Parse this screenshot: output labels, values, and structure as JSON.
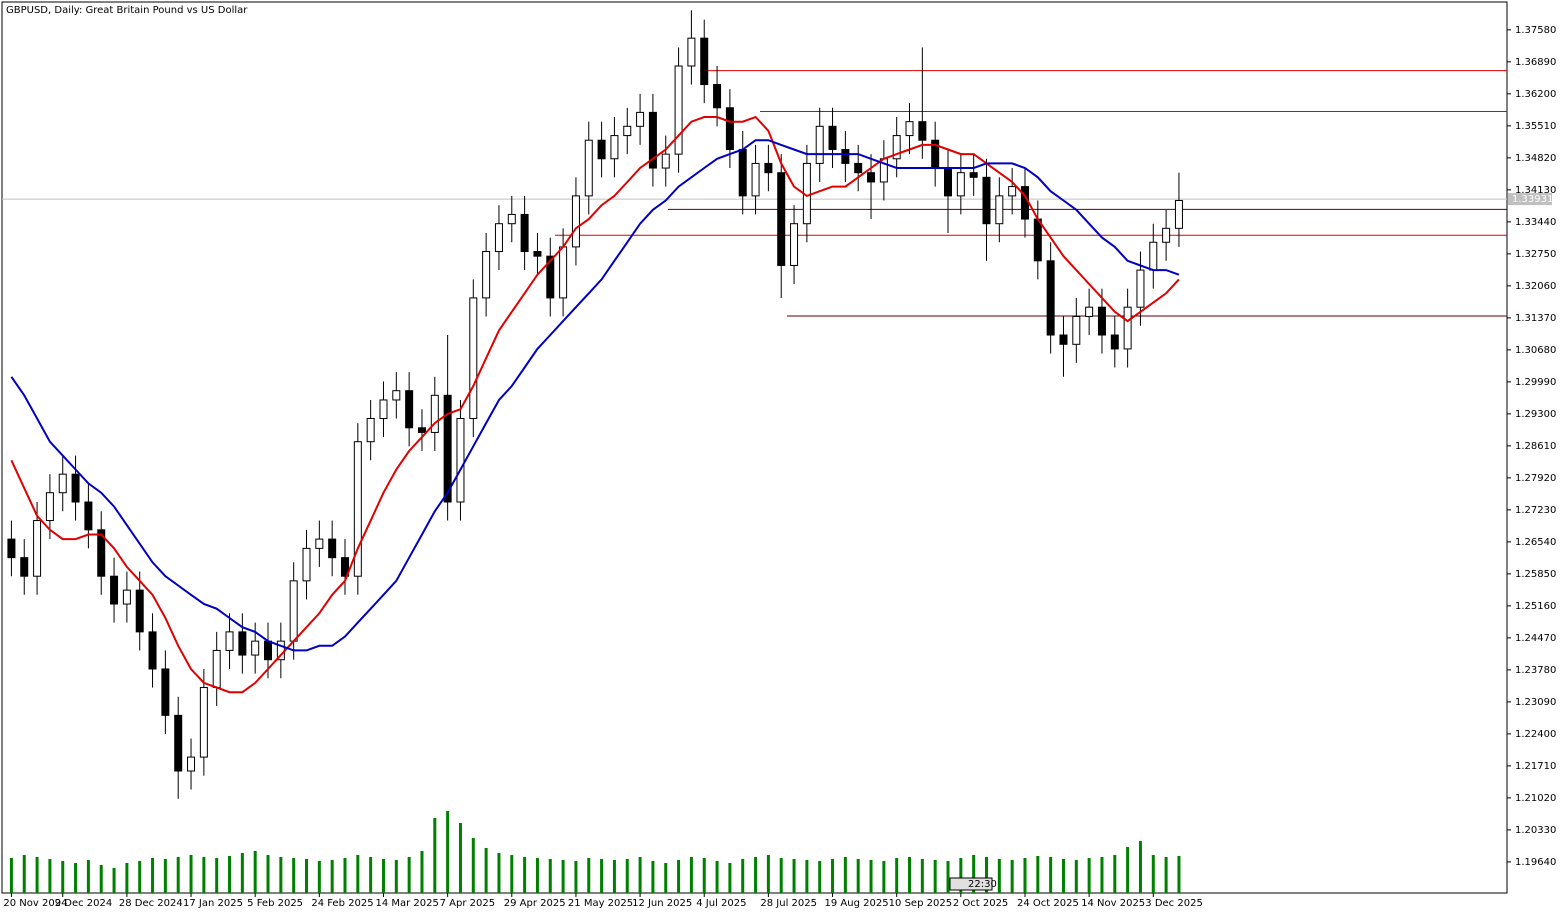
{
  "chart_data": {
    "type": "candlestick",
    "title": "GBPUSD, Daily:  Great Britain Pound vs US Dollar",
    "time_marker": "22:30",
    "categories": [
      "20 Nov 2024",
      null,
      null,
      null,
      "9 Dec 2024",
      null,
      null,
      null,
      null,
      "28 Dec 2024",
      null,
      null,
      null,
      null,
      "17 Jan 2025",
      null,
      null,
      null,
      null,
      "5 Feb 2025",
      null,
      null,
      null,
      null,
      "24 Feb 2025",
      null,
      null,
      null,
      null,
      "14 Mar 2025",
      null,
      null,
      null,
      null,
      "7 Apr 2025",
      null,
      null,
      null,
      null,
      "29 Apr 2025",
      null,
      null,
      null,
      null,
      "21 May 2025",
      null,
      null,
      null,
      null,
      "12 Jun 2025",
      null,
      null,
      null,
      null,
      "4 Jul 2025",
      null,
      null,
      null,
      null,
      "28 Jul 2025",
      null,
      null,
      null,
      null,
      "19 Aug 2025",
      null,
      null,
      null,
      null,
      "10 Sep 2025",
      null,
      null,
      null,
      null,
      "2 Oct 2025",
      null,
      null,
      null,
      null,
      "24 Oct 2025",
      null,
      null,
      null,
      null,
      "14 Nov 2025",
      null,
      null,
      null,
      null,
      "3 Dec 2025",
      null,
      null
    ],
    "open": [
      1.266,
      1.262,
      1.258,
      1.27,
      1.276,
      1.28,
      1.274,
      1.268,
      1.258,
      1.252,
      1.255,
      1.246,
      1.238,
      1.228,
      1.216,
      1.219,
      1.234,
      1.242,
      1.246,
      1.241,
      1.244,
      1.24,
      1.244,
      1.257,
      1.264,
      1.266,
      1.262,
      1.258,
      1.287,
      1.292,
      1.296,
      1.298,
      1.29,
      1.289,
      1.297,
      1.274,
      1.292,
      1.318,
      1.328,
      1.334,
      1.336,
      1.328,
      1.327,
      1.318,
      1.329,
      1.34,
      1.352,
      1.348,
      1.353,
      1.355,
      1.358,
      1.346,
      1.349,
      1.368,
      1.374,
      1.364,
      1.359,
      1.35,
      1.34,
      1.347,
      1.345,
      1.325,
      1.334,
      1.347,
      1.355,
      1.35,
      1.347,
      1.345,
      1.343,
      1.348,
      1.353,
      1.356,
      1.352,
      1.346,
      1.34,
      1.345,
      1.344,
      1.334,
      1.34,
      1.342,
      1.335,
      1.326,
      1.31,
      1.308,
      1.314,
      1.316,
      1.31,
      1.307,
      1.316,
      1.324,
      1.33,
      1.333
    ],
    "high": [
      1.27,
      1.266,
      1.274,
      1.28,
      1.284,
      1.284,
      1.278,
      1.272,
      1.262,
      1.259,
      1.259,
      1.25,
      1.242,
      1.232,
      1.223,
      1.238,
      1.246,
      1.25,
      1.25,
      1.248,
      1.248,
      1.248,
      1.261,
      1.268,
      1.27,
      1.27,
      1.266,
      1.291,
      1.296,
      1.3,
      1.302,
      1.302,
      1.294,
      1.301,
      1.31,
      1.296,
      1.322,
      1.332,
      1.338,
      1.34,
      1.34,
      1.332,
      1.331,
      1.333,
      1.344,
      1.356,
      1.356,
      1.357,
      1.359,
      1.362,
      1.362,
      1.353,
      1.372,
      1.38,
      1.378,
      1.368,
      1.363,
      1.354,
      1.351,
      1.351,
      1.349,
      1.338,
      1.351,
      1.359,
      1.359,
      1.354,
      1.351,
      1.349,
      1.352,
      1.357,
      1.36,
      1.372,
      1.356,
      1.35,
      1.349,
      1.349,
      1.348,
      1.344,
      1.346,
      1.346,
      1.339,
      1.33,
      1.314,
      1.318,
      1.32,
      1.32,
      1.314,
      1.32,
      1.328,
      1.334,
      1.337,
      1.345
    ],
    "low": [
      1.258,
      1.254,
      1.254,
      1.266,
      1.272,
      1.27,
      1.264,
      1.254,
      1.248,
      1.248,
      1.242,
      1.234,
      1.224,
      1.21,
      1.212,
      1.215,
      1.23,
      1.238,
      1.237,
      1.237,
      1.236,
      1.236,
      1.24,
      1.253,
      1.26,
      1.258,
      1.254,
      1.254,
      1.283,
      1.288,
      1.292,
      1.286,
      1.285,
      1.285,
      1.27,
      1.27,
      1.288,
      1.314,
      1.324,
      1.33,
      1.324,
      1.323,
      1.314,
      1.314,
      1.325,
      1.336,
      1.344,
      1.344,
      1.349,
      1.351,
      1.342,
      1.342,
      1.345,
      1.364,
      1.36,
      1.355,
      1.346,
      1.336,
      1.336,
      1.341,
      1.318,
      1.321,
      1.33,
      1.343,
      1.346,
      1.343,
      1.341,
      1.335,
      1.339,
      1.344,
      1.349,
      1.348,
      1.342,
      1.332,
      1.336,
      1.34,
      1.326,
      1.33,
      1.336,
      1.331,
      1.322,
      1.306,
      1.301,
      1.304,
      1.31,
      1.306,
      1.303,
      1.303,
      1.312,
      1.32,
      1.326,
      1.329
    ],
    "close": [
      1.262,
      1.258,
      1.27,
      1.276,
      1.28,
      1.274,
      1.268,
      1.258,
      1.252,
      1.255,
      1.246,
      1.238,
      1.228,
      1.216,
      1.219,
      1.234,
      1.242,
      1.246,
      1.241,
      1.244,
      1.24,
      1.244,
      1.257,
      1.264,
      1.266,
      1.262,
      1.258,
      1.287,
      1.292,
      1.296,
      1.298,
      1.29,
      1.289,
      1.297,
      1.274,
      1.292,
      1.318,
      1.328,
      1.334,
      1.336,
      1.328,
      1.327,
      1.318,
      1.329,
      1.34,
      1.352,
      1.348,
      1.353,
      1.355,
      1.358,
      1.346,
      1.349,
      1.368,
      1.374,
      1.364,
      1.359,
      1.35,
      1.34,
      1.347,
      1.345,
      1.325,
      1.334,
      1.347,
      1.355,
      1.35,
      1.347,
      1.345,
      1.343,
      1.348,
      1.353,
      1.356,
      1.352,
      1.346,
      1.34,
      1.345,
      1.344,
      1.334,
      1.34,
      1.342,
      1.335,
      1.326,
      1.31,
      1.308,
      1.314,
      1.316,
      1.31,
      1.307,
      1.316,
      1.324,
      1.33,
      1.333,
      1.339
    ],
    "volume": [
      35,
      38,
      36,
      34,
      32,
      30,
      33,
      28,
      25,
      30,
      32,
      35,
      34,
      36,
      38,
      36,
      35,
      37,
      40,
      42,
      38,
      36,
      35,
      34,
      32,
      33,
      35,
      38,
      36,
      34,
      33,
      36,
      42,
      75,
      82,
      70,
      55,
      45,
      40,
      38,
      36,
      35,
      34,
      33,
      32,
      35,
      34,
      33,
      34,
      36,
      32,
      30,
      33,
      36,
      35,
      32,
      30,
      34,
      36,
      38,
      35,
      34,
      33,
      32,
      34,
      36,
      34,
      33,
      32,
      35,
      36,
      34,
      33,
      32,
      35,
      38,
      36,
      34,
      33,
      35,
      37,
      36,
      34,
      33,
      35,
      36,
      38,
      46,
      52,
      38,
      36,
      37
    ],
    "volume_color": "#008000",
    "lines": [
      {
        "color": "#e00000",
        "values": [
          1.283,
          1.277,
          1.271,
          1.268,
          1.266,
          1.266,
          1.267,
          1.267,
          1.264,
          1.26,
          1.257,
          1.254,
          1.249,
          1.243,
          1.238,
          1.235,
          1.234,
          1.233,
          1.233,
          1.235,
          1.238,
          1.241,
          1.244,
          1.247,
          1.25,
          1.254,
          1.257,
          1.264,
          1.27,
          1.276,
          1.281,
          1.285,
          1.288,
          1.291,
          1.293,
          1.294,
          1.299,
          1.305,
          1.311,
          1.315,
          1.319,
          1.323,
          1.326,
          1.329,
          1.333,
          1.335,
          1.338,
          1.34,
          1.343,
          1.346,
          1.348,
          1.35,
          1.353,
          1.356,
          1.357,
          1.357,
          1.356,
          1.356,
          1.357,
          1.354,
          1.347,
          1.342,
          1.34,
          1.341,
          1.342,
          1.342,
          1.344,
          1.346,
          1.348,
          1.349,
          1.35,
          1.351,
          1.351,
          1.35,
          1.349,
          1.349,
          1.347,
          1.345,
          1.343,
          1.34,
          1.335,
          1.331,
          1.327,
          1.324,
          1.321,
          1.318,
          1.315,
          1.313,
          1.315,
          1.317,
          1.319,
          1.322
        ]
      },
      {
        "color": "#0000c0",
        "values": [
          1.301,
          1.297,
          1.292,
          1.287,
          1.284,
          1.281,
          1.278,
          1.276,
          1.273,
          1.269,
          1.265,
          1.261,
          1.258,
          1.256,
          1.254,
          1.252,
          1.251,
          1.249,
          1.247,
          1.246,
          1.244,
          1.243,
          1.242,
          1.242,
          1.243,
          1.243,
          1.245,
          1.248,
          1.251,
          1.254,
          1.257,
          1.262,
          1.267,
          1.272,
          1.276,
          1.281,
          1.286,
          1.291,
          1.296,
          1.299,
          1.303,
          1.307,
          1.31,
          1.313,
          1.316,
          1.319,
          1.322,
          1.326,
          1.33,
          1.334,
          1.337,
          1.339,
          1.342,
          1.344,
          1.346,
          1.348,
          1.349,
          1.35,
          1.352,
          1.352,
          1.351,
          1.35,
          1.349,
          1.349,
          1.349,
          1.349,
          1.349,
          1.348,
          1.347,
          1.346,
          1.346,
          1.346,
          1.346,
          1.346,
          1.346,
          1.346,
          1.347,
          1.347,
          1.347,
          1.346,
          1.344,
          1.341,
          1.339,
          1.337,
          1.334,
          1.331,
          1.329,
          1.326,
          1.325,
          1.324,
          1.324,
          1.323
        ]
      }
    ],
    "levels": [
      {
        "value": 1.367,
        "color": "#e00000"
      },
      {
        "value": 1.3582,
        "color": "#e00000"
      },
      {
        "value": 1.3371,
        "color": "#600000"
      },
      {
        "value": 1.3315,
        "color": "#e00000"
      },
      {
        "value": 1.3141,
        "color": "#600000"
      }
    ],
    "last_price": {
      "value": 1.33931,
      "label": "1.33931"
    },
    "ylim": [
      1.1897,
      1.3818
    ],
    "yticks": [
      {
        "value": 1.3758,
        "label": "1.37580"
      },
      {
        "value": 1.3689,
        "label": "1.36890"
      },
      {
        "value": 1.362,
        "label": "1.36200"
      },
      {
        "value": 1.3551,
        "label": "1.35510"
      },
      {
        "value": 1.3482,
        "label": "1.34820"
      },
      {
        "value": 1.3413,
        "label": "1.34130"
      },
      {
        "value": 1.3344,
        "label": "1.33440"
      },
      {
        "value": 1.3275,
        "label": "1.32750"
      },
      {
        "value": 1.3206,
        "label": "1.32060"
      },
      {
        "value": 1.3137,
        "label": "1.31370"
      },
      {
        "value": 1.3068,
        "label": "1.30680"
      },
      {
        "value": 1.2999,
        "label": "1.29990"
      },
      {
        "value": 1.293,
        "label": "1.29300"
      },
      {
        "value": 1.2861,
        "label": "1.28610"
      },
      {
        "value": 1.2792,
        "label": "1.27920"
      },
      {
        "value": 1.2723,
        "label": "1.27230"
      },
      {
        "value": 1.2654,
        "label": "1.26540"
      },
      {
        "value": 1.2585,
        "label": "1.25850"
      },
      {
        "value": 1.2516,
        "label": "1.25160"
      },
      {
        "value": 1.2447,
        "label": "1.24470"
      },
      {
        "value": 1.2378,
        "label": "1.23780"
      },
      {
        "value": 1.2309,
        "label": "1.23090"
      },
      {
        "value": 1.224,
        "label": "1.22400"
      },
      {
        "value": 1.2171,
        "label": "1.21710"
      },
      {
        "value": 1.2102,
        "label": "1.21020"
      },
      {
        "value": 1.2033,
        "label": "1.20330"
      },
      {
        "value": 1.1964,
        "label": "1.19640"
      }
    ]
  }
}
